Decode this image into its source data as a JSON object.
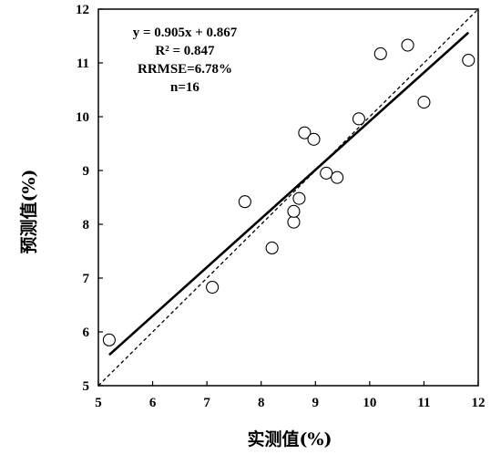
{
  "chart_data": {
    "type": "scatter",
    "title": "",
    "xlabel": "实测值(%)",
    "ylabel": "预测值(%)",
    "xlim": [
      5,
      12
    ],
    "ylim": [
      5,
      12
    ],
    "xticks": [
      5,
      6,
      7,
      8,
      9,
      10,
      11,
      12
    ],
    "yticks": [
      5,
      6,
      7,
      8,
      9,
      10,
      11,
      12
    ],
    "grid": false,
    "points": [
      {
        "x": 5.2,
        "y": 5.85
      },
      {
        "x": 7.1,
        "y": 6.83
      },
      {
        "x": 7.7,
        "y": 8.42
      },
      {
        "x": 8.2,
        "y": 7.56
      },
      {
        "x": 8.6,
        "y": 8.04
      },
      {
        "x": 8.6,
        "y": 8.24
      },
      {
        "x": 8.7,
        "y": 8.48
      },
      {
        "x": 8.8,
        "y": 9.7
      },
      {
        "x": 8.97,
        "y": 9.58
      },
      {
        "x": 9.2,
        "y": 8.95
      },
      {
        "x": 9.4,
        "y": 8.87
      },
      {
        "x": 9.8,
        "y": 9.96
      },
      {
        "x": 10.2,
        "y": 11.17
      },
      {
        "x": 10.7,
        "y": 11.33
      },
      {
        "x": 11.0,
        "y": 10.27
      },
      {
        "x": 11.82,
        "y": 11.05
      }
    ],
    "fit_line": {
      "slope": 0.905,
      "intercept": 0.867,
      "x_range": [
        5.2,
        11.82
      ]
    },
    "reference_line": {
      "type": "1:1",
      "style": "dashed"
    },
    "annotations": [
      "y = 0.905x + 0.867",
      "R² = 0.847",
      "RRMSE=6.78%",
      "n=16"
    ]
  }
}
